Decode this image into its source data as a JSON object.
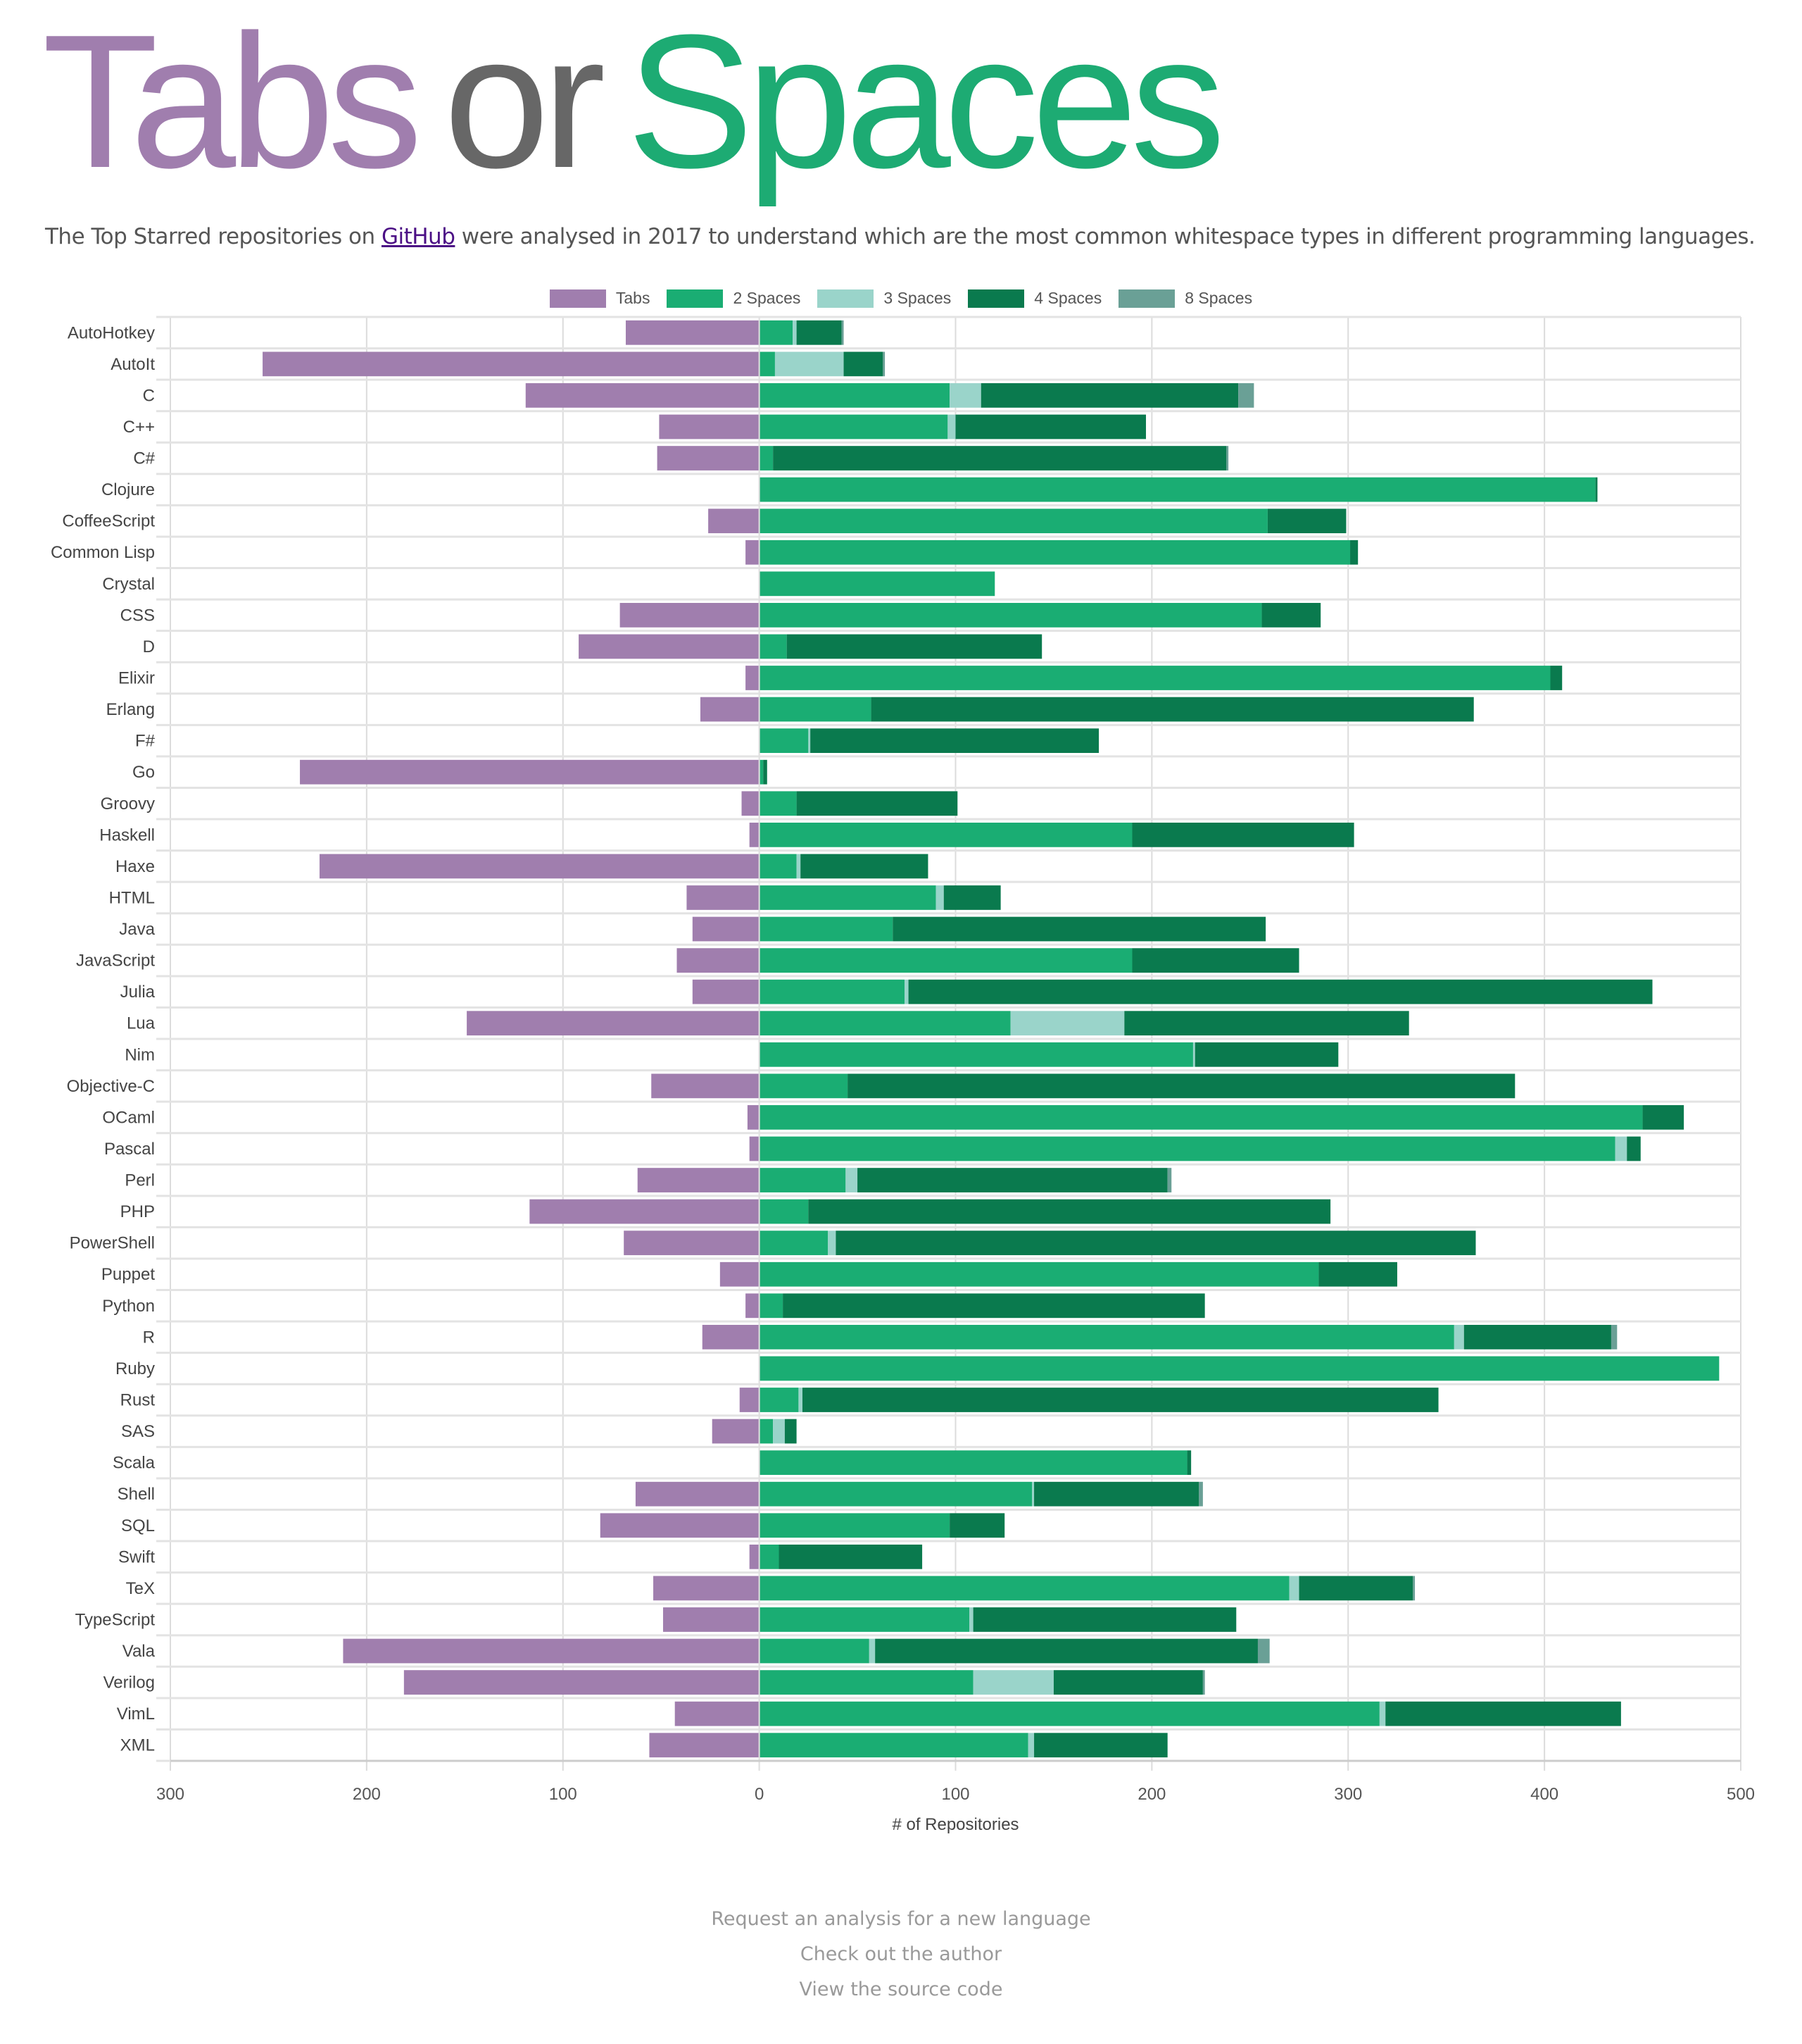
{
  "header": {
    "title_tabs": "Tabs",
    "title_or": "or",
    "title_spaces": "Spaces",
    "subtitle_before": "The Top Starred repositories on ",
    "subtitle_link": "GitHub",
    "subtitle_after": " were analysed in 2017 to understand which are the most common whitespace types in different programming languages."
  },
  "colors": {
    "tabs": "#a07eae",
    "spaces2": "#1aad73",
    "spaces3": "#9ad4ca",
    "spaces4": "#0a7a4e",
    "spaces8": "#6aa096"
  },
  "chart_data": {
    "type": "bar",
    "orientation": "horizontal-stacked-diverging",
    "title": "",
    "xlabel": "# of Repositories",
    "ylabel": "",
    "xlim": [
      -300,
      500
    ],
    "xticks": [
      -300,
      -200,
      -100,
      0,
      100,
      200,
      300,
      400,
      500
    ],
    "xtick_labels": [
      "300",
      "200",
      "100",
      "0",
      "100",
      "200",
      "300",
      "400",
      "500"
    ],
    "grid": true,
    "legend_position": "top-center",
    "legend": [
      "Tabs",
      "2 Spaces",
      "3 Spaces",
      "4 Spaces",
      "8 Spaces"
    ],
    "categories": [
      "AutoHotkey",
      "AutoIt",
      "C",
      "C++",
      "C#",
      "Clojure",
      "CoffeeScript",
      "Common Lisp",
      "Crystal",
      "CSS",
      "D",
      "Elixir",
      "Erlang",
      "F#",
      "Go",
      "Groovy",
      "Haskell",
      "Haxe",
      "HTML",
      "Java",
      "JavaScript",
      "Julia",
      "Lua",
      "Nim",
      "Objective-C",
      "OCaml",
      "Pascal",
      "Perl",
      "PHP",
      "PowerShell",
      "Puppet",
      "Python",
      "R",
      "Ruby",
      "Rust",
      "SAS",
      "Scala",
      "Shell",
      "SQL",
      "Swift",
      "TeX",
      "TypeScript",
      "Vala",
      "Verilog",
      "VimL",
      "XML"
    ],
    "series": [
      {
        "name": "Tabs",
        "values": [
          68,
          253,
          119,
          51,
          52,
          0,
          26,
          7,
          0,
          71,
          92,
          7,
          30,
          0,
          234,
          9,
          5,
          224,
          37,
          34,
          42,
          34,
          149,
          0,
          55,
          6,
          5,
          62,
          117,
          69,
          20,
          7,
          29,
          0,
          10,
          24,
          0,
          63,
          81,
          5,
          54,
          49,
          212,
          181,
          43,
          56
        ]
      },
      {
        "name": "2 Spaces",
        "values": [
          17,
          8,
          97,
          96,
          7,
          426,
          259,
          301,
          120,
          256,
          14,
          403,
          57,
          25,
          2,
          19,
          190,
          19,
          90,
          68,
          190,
          74,
          128,
          221,
          45,
          450,
          436,
          44,
          25,
          35,
          285,
          12,
          354,
          489,
          20,
          7,
          218,
          139,
          97,
          10,
          270,
          107,
          56,
          109,
          316,
          137
        ]
      },
      {
        "name": "3 Spaces",
        "values": [
          2,
          35,
          16,
          4,
          0,
          0,
          0,
          0,
          0,
          0,
          0,
          0,
          0,
          1,
          0,
          0,
          0,
          2,
          4,
          0,
          0,
          2,
          58,
          1,
          0,
          0,
          6,
          6,
          0,
          4,
          0,
          0,
          5,
          0,
          2,
          6,
          0,
          1,
          0,
          0,
          5,
          2,
          3,
          41,
          3,
          3
        ]
      },
      {
        "name": "4 Spaces",
        "values": [
          23,
          20,
          131,
          97,
          231,
          1,
          40,
          4,
          0,
          30,
          130,
          6,
          307,
          147,
          2,
          82,
          113,
          65,
          29,
          190,
          85,
          379,
          145,
          73,
          340,
          21,
          7,
          158,
          266,
          326,
          40,
          215,
          75,
          0,
          324,
          6,
          2,
          84,
          28,
          73,
          58,
          134,
          195,
          76,
          120,
          68
        ]
      },
      {
        "name": "8 Spaces",
        "values": [
          1,
          1,
          8,
          0,
          1,
          0,
          0,
          0,
          0,
          0,
          0,
          0,
          0,
          0,
          0,
          0,
          0,
          0,
          0,
          0,
          0,
          0,
          0,
          0,
          0,
          0,
          0,
          2,
          0,
          0,
          0,
          0,
          3,
          0,
          0,
          0,
          0,
          2,
          0,
          0,
          1,
          0,
          6,
          1,
          0,
          0
        ]
      }
    ]
  },
  "footer": {
    "links": [
      "Request an analysis for a new language",
      "Check out the author",
      "View the source code"
    ]
  }
}
